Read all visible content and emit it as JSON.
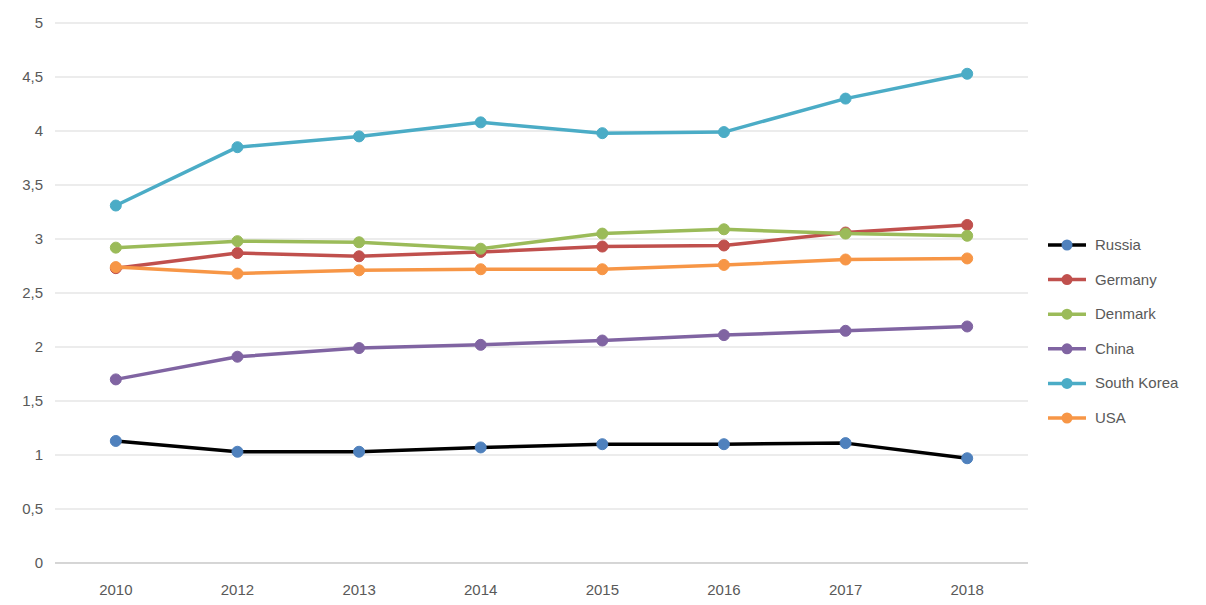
{
  "chart_data": {
    "type": "line",
    "categories": [
      "2010",
      "2012",
      "2013",
      "2014",
      "2015",
      "2016",
      "2017",
      "2018"
    ],
    "series": [
      {
        "name": "Russia",
        "color": "#000000",
        "marker": "circle",
        "values": [
          1.13,
          1.03,
          1.03,
          1.07,
          1.1,
          1.1,
          1.11,
          0.97
        ]
      },
      {
        "name": "Germany",
        "color": "#c0504d",
        "marker": "circle",
        "values": [
          2.73,
          2.87,
          2.84,
          2.88,
          2.93,
          2.94,
          3.06,
          3.13
        ]
      },
      {
        "name": "Denmark",
        "color": "#9bbb59",
        "marker": "circle",
        "values": [
          2.92,
          2.98,
          2.97,
          2.91,
          3.05,
          3.09,
          3.05,
          3.03
        ]
      },
      {
        "name": "China",
        "color": "#8064a2",
        "marker": "circle",
        "values": [
          1.7,
          1.91,
          1.99,
          2.02,
          2.06,
          2.11,
          2.15,
          2.19
        ]
      },
      {
        "name": "South Korea",
        "color": "#4bacc6",
        "marker": "circle",
        "values": [
          3.31,
          3.85,
          3.95,
          4.08,
          3.98,
          3.99,
          4.3,
          4.53
        ]
      },
      {
        "name": "USA",
        "color": "#f79646",
        "marker": "circle",
        "values": [
          2.74,
          2.68,
          2.71,
          2.72,
          2.72,
          2.76,
          2.81,
          2.82
        ]
      }
    ],
    "ylim": [
      0,
      5
    ],
    "yticks": [
      0,
      {
        "value": 0.5,
        "label": "0,5"
      },
      1,
      {
        "value": 1.5,
        "label": "1,5"
      },
      2,
      {
        "value": 2.5,
        "label": "2,5"
      },
      3,
      {
        "value": 3.5,
        "label": "3,5"
      },
      4,
      {
        "value": 4.5,
        "label": "4,5"
      },
      5
    ],
    "grid": true,
    "legend": "right"
  }
}
